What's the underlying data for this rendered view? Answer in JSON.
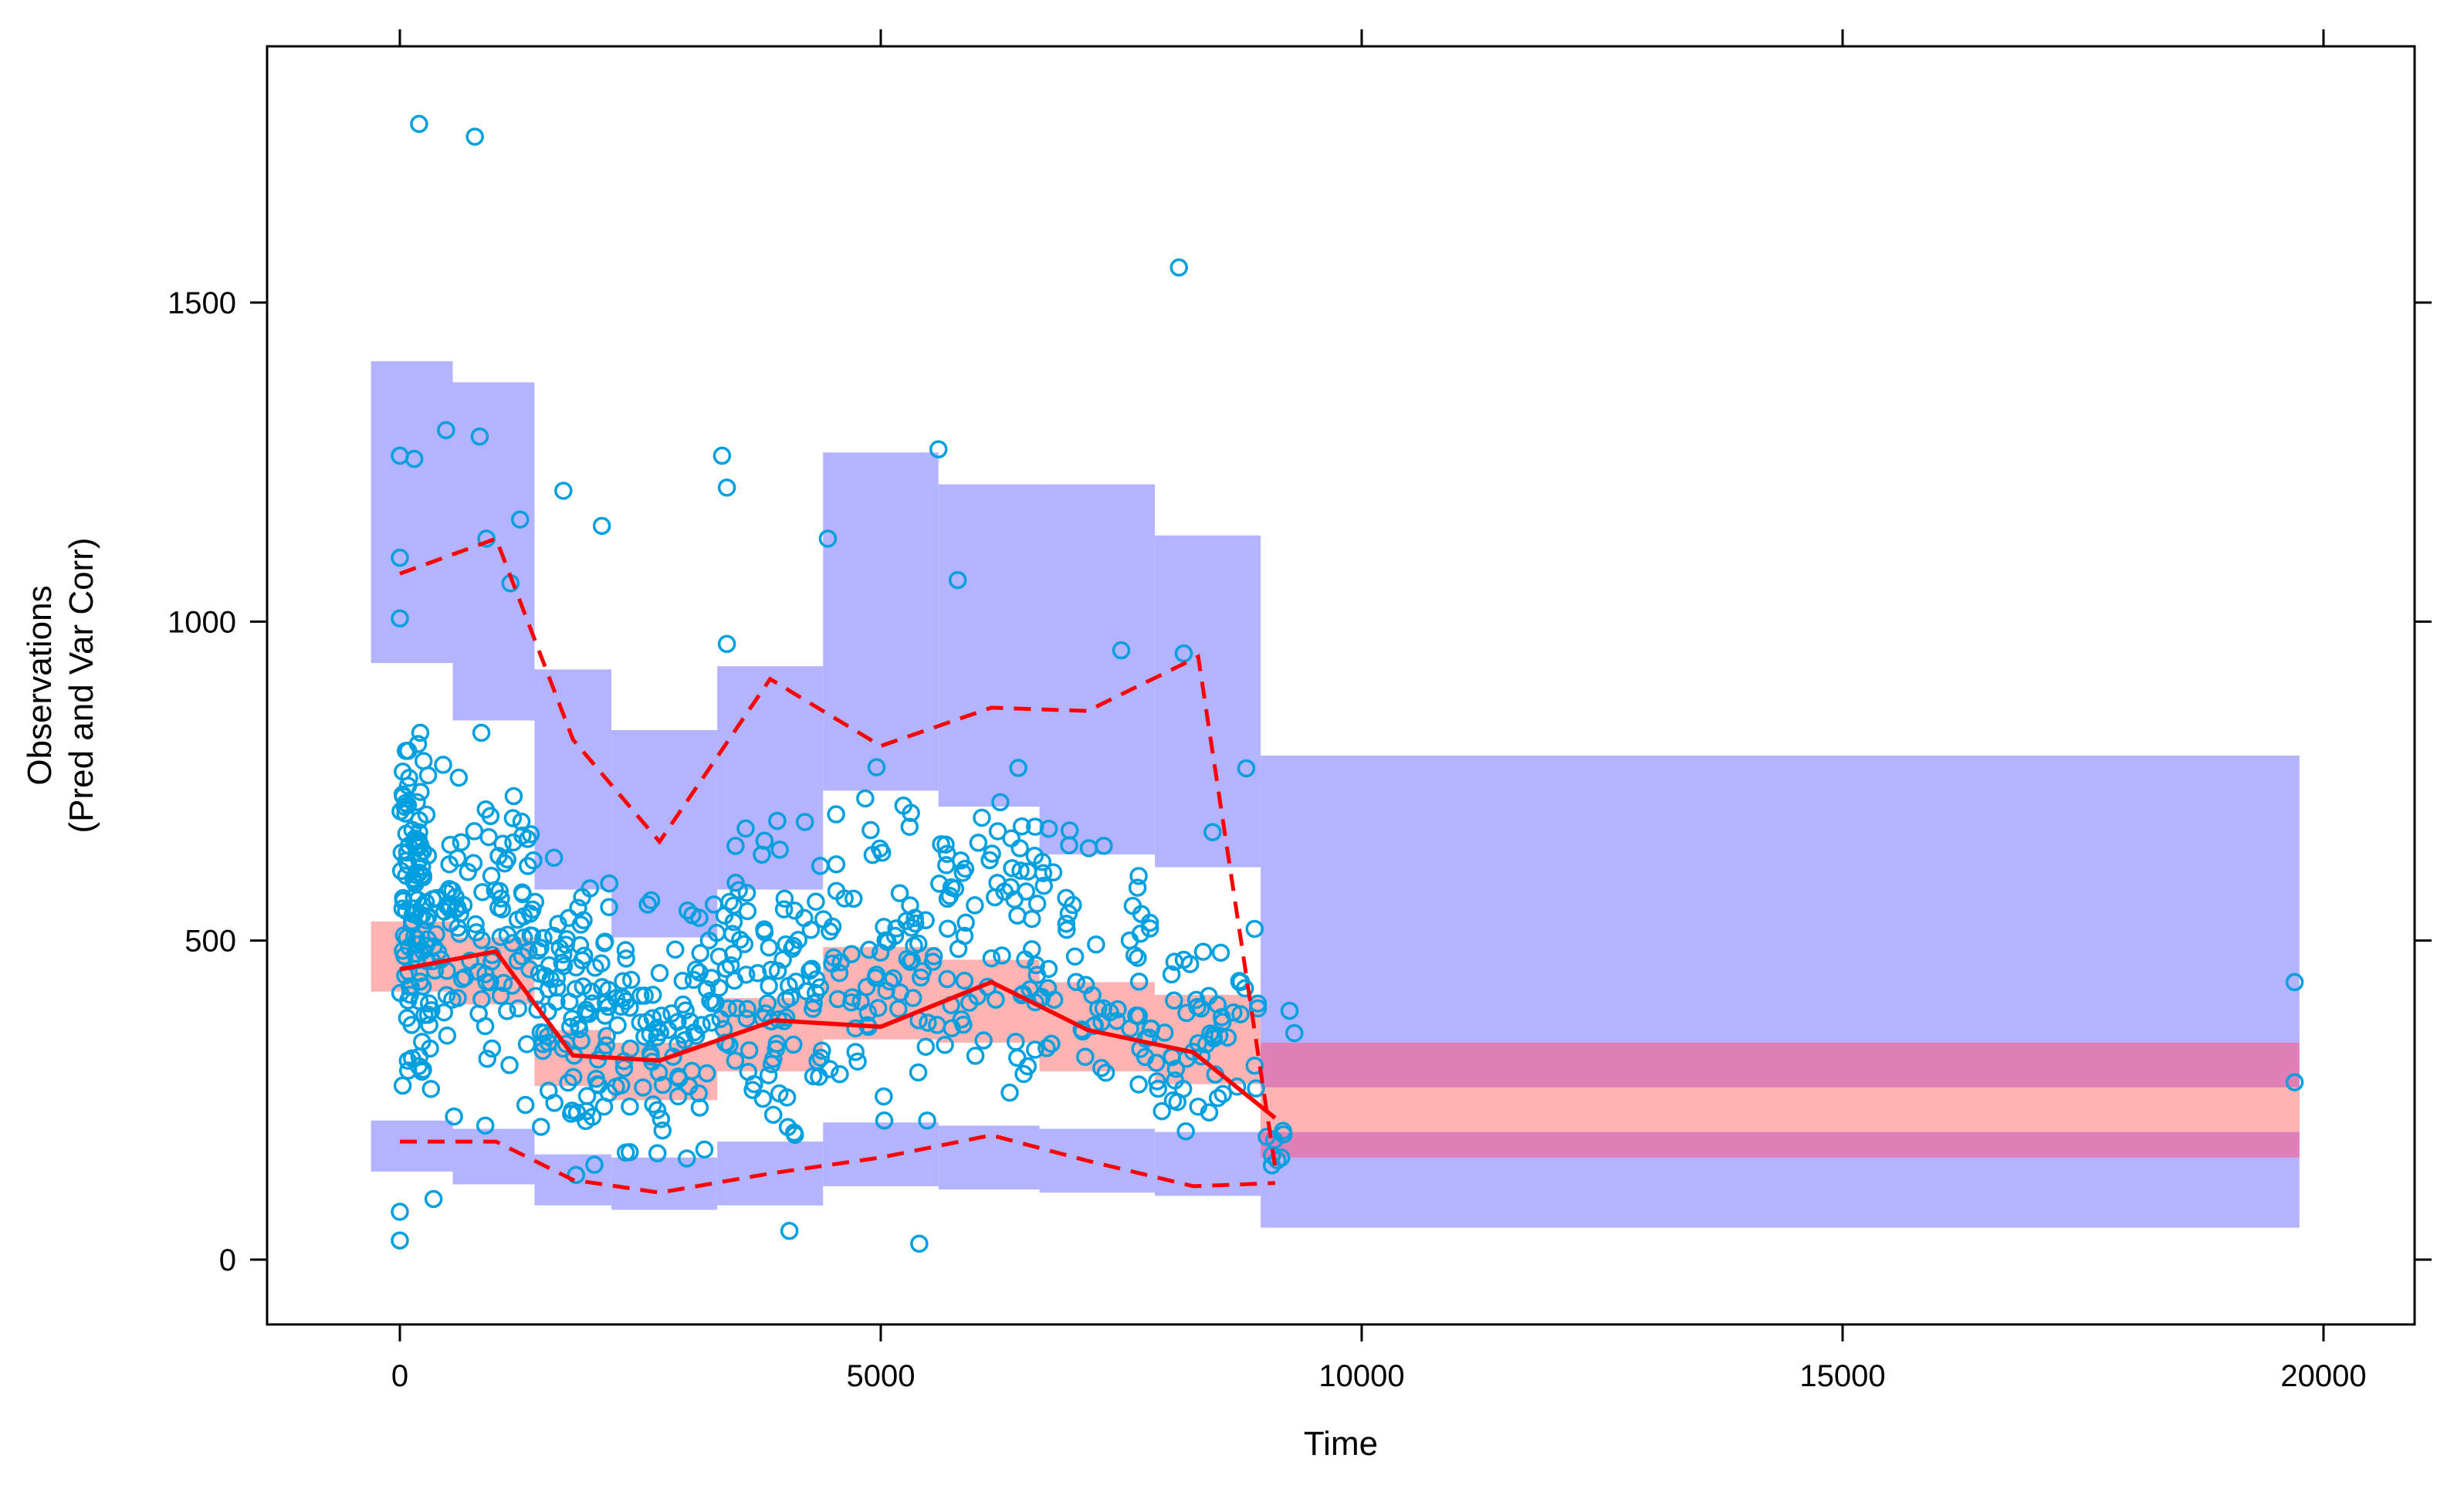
{
  "chart_data": {
    "type": "scatter",
    "title": "",
    "xlabel": "Time",
    "ylabel_line1": "Observations",
    "ylabel_line2": "(Pred and Var Corr)",
    "xlim": [
      -1400,
      21200
    ],
    "ylim": [
      -100,
      1900
    ],
    "x_ticks": [
      0,
      5000,
      10000,
      15000,
      20000
    ],
    "x_tick_labels": [
      "0",
      "5000",
      "10000",
      "15000",
      "20000"
    ],
    "y_ticks": [
      0,
      500,
      1000,
      1500
    ],
    "y_tick_labels": [
      "0",
      "500",
      "1000",
      "1500"
    ],
    "grid": false,
    "legend": "none",
    "colors": {
      "prediction_interval_outer": "#b3b3ff",
      "prediction_interval_overlap": "#e07fb8",
      "prediction_interval_median": "#ffb3b3",
      "observed_median": "#ff0000",
      "observed_percentiles": "#ff0000",
      "observations": "#00a0e0"
    },
    "bins": [
      {
        "x": [
          -300,
          550
        ],
        "upper_pi": [
          935,
          1408
        ],
        "median_pi": [
          420,
          530
        ],
        "lower_pi": [
          138,
          218
        ]
      },
      {
        "x": [
          550,
          1400
        ],
        "upper_pi": [
          845,
          1375
        ],
        "median_pi": [
          400,
          505
        ],
        "lower_pi": [
          118,
          205
        ]
      },
      {
        "x": [
          1400,
          2200
        ],
        "upper_pi": [
          580,
          925
        ],
        "median_pi": [
          272,
          360
        ],
        "lower_pi": [
          85,
          165
        ]
      },
      {
        "x": [
          2200,
          3300
        ],
        "upper_pi": [
          505,
          830
        ],
        "median_pi": [
          250,
          340
        ],
        "lower_pi": [
          78,
          160
        ]
      },
      {
        "x": [
          3300,
          4400
        ],
        "upper_pi": [
          580,
          930
        ],
        "median_pi": [
          295,
          410
        ],
        "lower_pi": [
          85,
          185
        ]
      },
      {
        "x": [
          4400,
          5600
        ],
        "upper_pi": [
          735,
          1265
        ],
        "median_pi": [
          345,
          490
        ],
        "lower_pi": [
          115,
          215
        ]
      },
      {
        "x": [
          5600,
          6650
        ],
        "upper_pi": [
          710,
          1215
        ],
        "median_pi": [
          340,
          470
        ],
        "lower_pi": [
          110,
          210
        ]
      },
      {
        "x": [
          6650,
          7850
        ],
        "upper_pi": [
          635,
          1215
        ],
        "median_pi": [
          295,
          435
        ],
        "lower_pi": [
          105,
          205
        ]
      },
      {
        "x": [
          7850,
          8950
        ],
        "upper_pi": [
          615,
          1135
        ],
        "median_pi": [
          275,
          415
        ],
        "lower_pi": [
          100,
          200
        ]
      },
      {
        "x": [
          8950,
          19750
        ],
        "upper_pi": [
          160,
          790
        ],
        "median_pi": [
          160,
          340
        ],
        "lower_pi": [
          50,
          790
        ]
      }
    ],
    "outer_wide_bin": {
      "x": [
        8950,
        19750
      ],
      "outer": [
        50,
        790
      ],
      "overlap": [
        160,
        340
      ],
      "median": [
        200,
        270
      ]
    },
    "observed_median": {
      "x": [
        0,
        1000,
        1800,
        2700,
        3900,
        5000,
        6150,
        7150,
        8250,
        9100
      ],
      "y": [
        455,
        483,
        320,
        312,
        375,
        365,
        435,
        360,
        325,
        222
      ]
    },
    "observed_p95": {
      "x": [
        0,
        1000,
        1800,
        2700,
        3850,
        5000,
        6150,
        7150,
        8300,
        9100
      ],
      "y": [
        1075,
        1130,
        815,
        655,
        910,
        805,
        865,
        860,
        945,
        145
      ]
    },
    "observed_p5": {
      "x": [
        0,
        1000,
        1800,
        2700,
        3850,
        5000,
        6150,
        7150,
        8250,
        9100
      ],
      "y": [
        185,
        185,
        125,
        105,
        135,
        160,
        195,
        155,
        115,
        120
      ]
    },
    "observations_outliers": [
      {
        "x": 200,
        "y": 1780
      },
      {
        "x": 780,
        "y": 1760
      },
      {
        "x": 8100,
        "y": 1555
      },
      {
        "x": 0,
        "y": 1260
      },
      {
        "x": 150,
        "y": 1255
      },
      {
        "x": 480,
        "y": 1300
      },
      {
        "x": 830,
        "y": 1290
      },
      {
        "x": 3350,
        "y": 1260
      },
      {
        "x": 3400,
        "y": 1210
      },
      {
        "x": 5600,
        "y": 1270
      },
      {
        "x": 4450,
        "y": 1130
      },
      {
        "x": 1250,
        "y": 1160
      },
      {
        "x": 2100,
        "y": 1150
      },
      {
        "x": 1700,
        "y": 1205
      },
      {
        "x": 5800,
        "y": 1065
      },
      {
        "x": 0,
        "y": 1100
      },
      {
        "x": 0,
        "y": 1005
      },
      {
        "x": 1150,
        "y": 1060
      },
      {
        "x": 900,
        "y": 1130
      },
      {
        "x": 7500,
        "y": 955
      },
      {
        "x": 8150,
        "y": 950
      },
      {
        "x": 3400,
        "y": 965
      },
      {
        "x": 19700,
        "y": 435
      },
      {
        "x": 19700,
        "y": 278
      },
      {
        "x": 5400,
        "y": 25
      },
      {
        "x": 4050,
        "y": 45
      },
      {
        "x": 0,
        "y": 30
      },
      {
        "x": 0,
        "y": 75
      },
      {
        "x": 350,
        "y": 95
      },
      {
        "x": 9250,
        "y": 390
      },
      {
        "x": 9300,
        "y": 355
      },
      {
        "x": 8800,
        "y": 770
      },
      {
        "x": 8450,
        "y": 670
      }
    ],
    "observations_dense_regions": [
      {
        "x_range": [
          0,
          300
        ],
        "y_range": [
          180,
          920
        ],
        "count": 110
      },
      {
        "x_range": [
          300,
          1400
        ],
        "y_range": [
          150,
          900
        ],
        "count": 110
      },
      {
        "x_range": [
          1400,
          2200
        ],
        "y_range": [
          90,
          700
        ],
        "count": 90
      },
      {
        "x_range": [
          2200,
          3300
        ],
        "y_range": [
          90,
          660
        ],
        "count": 85
      },
      {
        "x_range": [
          3300,
          4400
        ],
        "y_range": [
          100,
          760
        ],
        "count": 95
      },
      {
        "x_range": [
          4400,
          5600
        ],
        "y_range": [
          120,
          820
        ],
        "count": 75
      },
      {
        "x_range": [
          5600,
          6650
        ],
        "y_range": [
          120,
          860
        ],
        "count": 70
      },
      {
        "x_range": [
          6650,
          7850
        ],
        "y_range": [
          90,
          760
        ],
        "count": 60
      },
      {
        "x_range": [
          7850,
          8950
        ],
        "y_range": [
          100,
          600
        ],
        "count": 55
      },
      {
        "x_range": [
          8950,
          9200
        ],
        "y_range": [
          110,
          240
        ],
        "count": 8
      }
    ]
  }
}
